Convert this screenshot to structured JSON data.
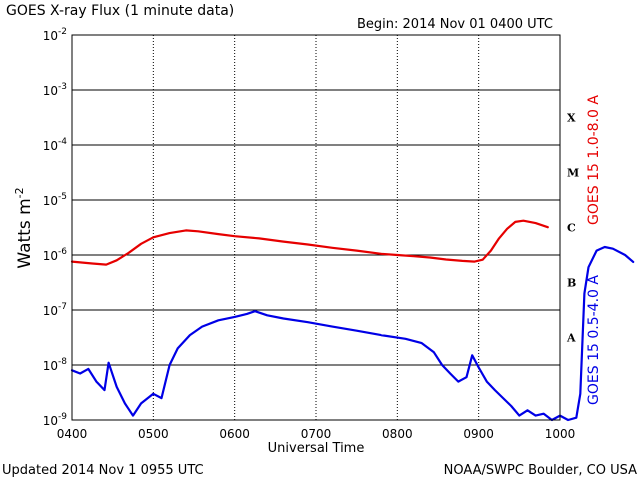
{
  "chart_data": {
    "type": "line",
    "title": "GOES X-ray Flux (1 minute data)",
    "begin_label": "Begin: 2014 Nov 01 0400 UTC",
    "xlabel": "Universal Time",
    "ylabel_base": "Watts m",
    "ylabel_exp": "-2",
    "footer_left": "Updated 2014 Nov  1 0955 UTC",
    "footer_right": "NOAA/SWPC Boulder, CO USA",
    "x_ticks": [
      "0400",
      "0500",
      "0600",
      "0700",
      "0800",
      "0900",
      "1000"
    ],
    "x_range_hours": [
      4,
      10
    ],
    "y_scale": "log",
    "y_ticks": [
      {
        "base": "10",
        "exp": "-2"
      },
      {
        "base": "10",
        "exp": "-3"
      },
      {
        "base": "10",
        "exp": "-4"
      },
      {
        "base": "10",
        "exp": "-5"
      },
      {
        "base": "10",
        "exp": "-6"
      },
      {
        "base": "10",
        "exp": "-7"
      },
      {
        "base": "10",
        "exp": "-8"
      },
      {
        "base": "10",
        "exp": "-9"
      }
    ],
    "ylim": [
      1e-09,
      0.01
    ],
    "flare_classes": [
      "X",
      "M",
      "C",
      "B",
      "A"
    ],
    "series": [
      {
        "name": "GOES 15 1.0-8.0 A",
        "color": "#e60000",
        "points": [
          [
            4.0,
            7.6e-07
          ],
          [
            4.25,
            7e-07
          ],
          [
            4.42,
            6.7e-07
          ],
          [
            4.55,
            8e-07
          ],
          [
            4.7,
            1.1e-06
          ],
          [
            4.85,
            1.6e-06
          ],
          [
            5.0,
            2.1e-06
          ],
          [
            5.2,
            2.5e-06
          ],
          [
            5.4,
            2.8e-06
          ],
          [
            5.55,
            2.7e-06
          ],
          [
            5.8,
            2.4e-06
          ],
          [
            6.0,
            2.2e-06
          ],
          [
            6.3,
            2e-06
          ],
          [
            6.6,
            1.75e-06
          ],
          [
            6.9,
            1.55e-06
          ],
          [
            7.2,
            1.35e-06
          ],
          [
            7.5,
            1.2e-06
          ],
          [
            7.8,
            1.05e-06
          ],
          [
            8.0,
            1e-06
          ],
          [
            8.2,
            9.5e-07
          ],
          [
            8.4,
            9e-07
          ],
          [
            8.6,
            8.3e-07
          ],
          [
            8.8,
            7.8e-07
          ],
          [
            8.95,
            7.6e-07
          ],
          [
            9.05,
            8.2e-07
          ],
          [
            9.15,
            1.2e-06
          ],
          [
            9.25,
            2e-06
          ],
          [
            9.35,
            3e-06
          ],
          [
            9.45,
            4e-06
          ],
          [
            9.55,
            4.2e-06
          ],
          [
            9.7,
            3.8e-06
          ],
          [
            9.85,
            3.2e-06
          ]
        ]
      },
      {
        "name": "GOES 15 0.5-4.0 A",
        "color": "#0000e6",
        "points": [
          [
            4.0,
            8e-09
          ],
          [
            4.1,
            7e-09
          ],
          [
            4.2,
            8.5e-09
          ],
          [
            4.3,
            5e-09
          ],
          [
            4.4,
            3.5e-09
          ],
          [
            4.45,
            1.1e-08
          ],
          [
            4.55,
            4e-09
          ],
          [
            4.65,
            2e-09
          ],
          [
            4.75,
            1.2e-09
          ],
          [
            4.85,
            2e-09
          ],
          [
            5.0,
            3e-09
          ],
          [
            5.1,
            2.5e-09
          ],
          [
            5.2,
            1e-08
          ],
          [
            5.3,
            2e-08
          ],
          [
            5.45,
            3.5e-08
          ],
          [
            5.6,
            5e-08
          ],
          [
            5.8,
            6.5e-08
          ],
          [
            6.0,
            7.5e-08
          ],
          [
            6.15,
            8.5e-08
          ],
          [
            6.25,
            9.5e-08
          ],
          [
            6.4,
            8e-08
          ],
          [
            6.6,
            7e-08
          ],
          [
            6.9,
            6e-08
          ],
          [
            7.2,
            5e-08
          ],
          [
            7.5,
            4.2e-08
          ],
          [
            7.8,
            3.5e-08
          ],
          [
            8.1,
            3e-08
          ],
          [
            8.3,
            2.5e-08
          ],
          [
            8.45,
            1.7e-08
          ],
          [
            8.55,
            1e-08
          ],
          [
            8.65,
            7e-09
          ],
          [
            8.75,
            5e-09
          ],
          [
            8.85,
            6e-09
          ],
          [
            8.92,
            1.5e-08
          ],
          [
            9.0,
            9e-09
          ],
          [
            9.1,
            5e-09
          ],
          [
            9.2,
            3.5e-09
          ],
          [
            9.3,
            2.5e-09
          ],
          [
            9.4,
            1.8e-09
          ],
          [
            9.5,
            1.2e-09
          ],
          [
            9.6,
            1.5e-09
          ],
          [
            9.7,
            1.2e-09
          ],
          [
            9.8,
            1.3e-09
          ],
          [
            9.9,
            1e-09
          ],
          [
            10.0,
            1.2e-09
          ],
          [
            10.1,
            1e-09
          ],
          [
            10.2,
            1.1e-09
          ],
          [
            10.25,
            3e-09
          ],
          [
            10.3,
            2e-07
          ],
          [
            10.35,
            6e-07
          ],
          [
            10.45,
            1.2e-06
          ],
          [
            10.55,
            1.4e-06
          ],
          [
            10.65,
            1.3e-06
          ],
          [
            10.8,
            1e-06
          ],
          [
            10.9,
            7.5e-07
          ]
        ]
      }
    ]
  }
}
